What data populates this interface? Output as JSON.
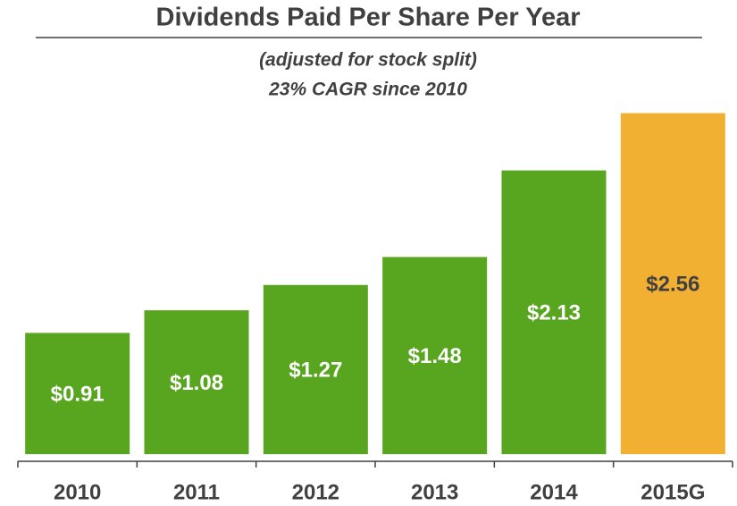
{
  "chart_data": {
    "type": "bar",
    "title": "Dividends Paid Per Share Per Year",
    "subtitle": [
      "(adjusted for stock split)",
      "23% CAGR since 2010"
    ],
    "categories": [
      "2010",
      "2011",
      "2012",
      "2013",
      "2014",
      "2015G"
    ],
    "values": [
      0.91,
      1.08,
      1.27,
      1.48,
      2.13,
      2.56
    ],
    "value_labels": [
      "$0.91",
      "$1.08",
      "$1.27",
      "$1.48",
      "$2.13",
      "$2.56"
    ],
    "colors": [
      "#58a51f",
      "#58a51f",
      "#58a51f",
      "#58a51f",
      "#58a51f",
      "#f2b032"
    ],
    "label_colors": [
      "#ffffff",
      "#ffffff",
      "#ffffff",
      "#ffffff",
      "#ffffff",
      "#404040"
    ]
  }
}
